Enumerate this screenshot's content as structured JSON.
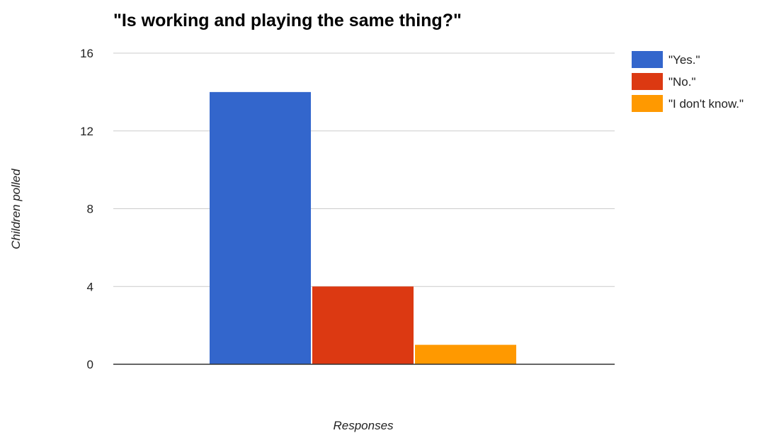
{
  "chart_data": {
    "type": "bar",
    "title": "\"Is working and playing the same thing?\"",
    "xlabel": "Responses",
    "ylabel": "Children polled",
    "ylim": [
      0,
      16
    ],
    "yticks": [
      0,
      4,
      8,
      12,
      16
    ],
    "categories": [
      ""
    ],
    "series": [
      {
        "name": "\"Yes.\"",
        "color": "#3366cc",
        "values": [
          14
        ]
      },
      {
        "name": "\"No.\"",
        "color": "#dc3912",
        "values": [
          4
        ]
      },
      {
        "name": "\"I don't know.\"",
        "color": "#ff9900",
        "values": [
          1
        ]
      }
    ],
    "grid": true,
    "legend_position": "right"
  }
}
